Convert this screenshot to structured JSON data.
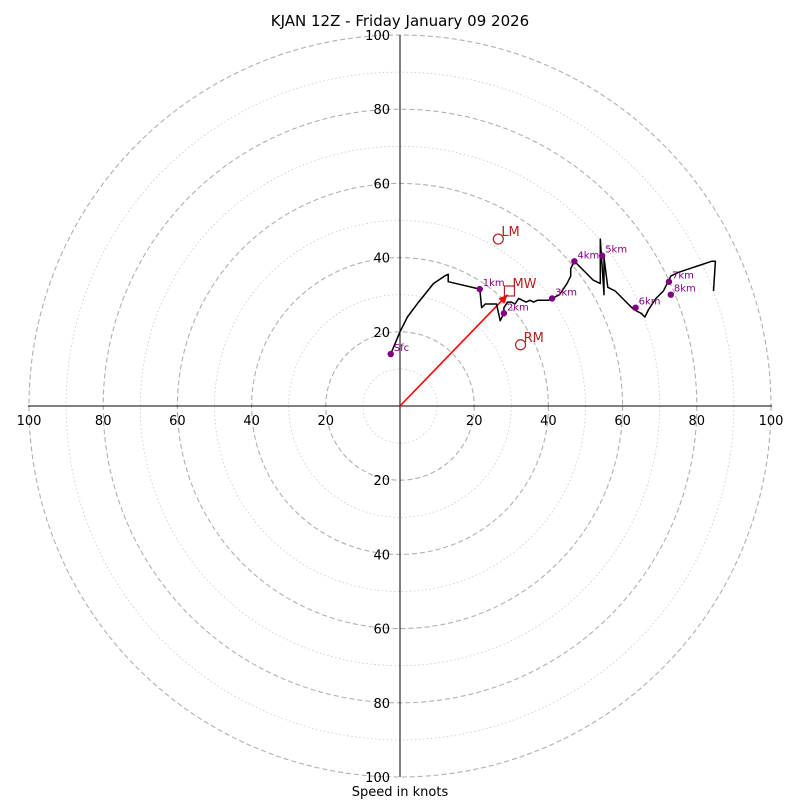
{
  "chart_data": {
    "type": "line",
    "title": "KJAN 12Z - Friday January 09 2026",
    "xlabel": "Speed in knots",
    "ylabel": "",
    "xlim": [
      -100,
      100
    ],
    "ylim": [
      -100,
      100
    ],
    "ring_step_major": 20,
    "ring_step_minor": 10,
    "tick_values": [
      20,
      40,
      60,
      80,
      100
    ],
    "grid": true,
    "colors": {
      "hodograph": "#000000",
      "height_markers": "#800080",
      "motion": "#b22222",
      "shear_vector": "#ff0000",
      "major_grid": "#b0b0b0",
      "minor_grid": "#c8c8c8"
    },
    "hodograph": {
      "u": [
        -2.5,
        0,
        2,
        5,
        9,
        12,
        13,
        13,
        21.5,
        22,
        23,
        26,
        27,
        28,
        28,
        29,
        30,
        31,
        32,
        33,
        34,
        35,
        36,
        37,
        38,
        40,
        41,
        43,
        45,
        46,
        46,
        47,
        48,
        50,
        52,
        54,
        54,
        55,
        55,
        56,
        58,
        60,
        61,
        63,
        65,
        66,
        67,
        69,
        71,
        72,
        72.5,
        73,
        75,
        78,
        81,
        84,
        85,
        84.5
      ],
      "v": [
        14,
        20,
        24,
        28,
        33,
        35,
        35.5,
        33.5,
        31.5,
        26.5,
        27.5,
        27.5,
        23,
        25,
        26.5,
        28,
        28,
        27.5,
        29,
        28.5,
        28,
        28.5,
        28,
        28.5,
        28.5,
        28.5,
        29,
        30,
        33,
        35,
        37,
        39,
        38,
        36,
        34,
        33,
        45,
        30,
        40,
        32,
        31,
        29,
        28,
        26,
        25,
        24,
        26,
        29,
        31,
        33,
        34,
        35,
        36,
        37,
        38,
        39,
        39,
        31
      ]
    },
    "height_markers": [
      {
        "label": "Sfc",
        "u": -2.5,
        "v": 14
      },
      {
        "label": "1km",
        "u": 21.5,
        "v": 31.5
      },
      {
        "label": "2km",
        "u": 28,
        "v": 25
      },
      {
        "label": "3km",
        "u": 41,
        "v": 29
      },
      {
        "label": "4km",
        "u": 47,
        "v": 39
      },
      {
        "label": "5km",
        "u": 54.5,
        "v": 40.5
      },
      {
        "label": "6km",
        "u": 63.5,
        "v": 26.5
      },
      {
        "label": "7km",
        "u": 72.5,
        "v": 33.5
      },
      {
        "label": "8km",
        "u": 73,
        "v": 30
      }
    ],
    "storm_motions": [
      {
        "label": "LM",
        "u": 26.5,
        "v": 45,
        "marker": "circle"
      },
      {
        "label": "MW",
        "u": 29.5,
        "v": 31,
        "marker": "square"
      },
      {
        "label": "RM",
        "u": 32.5,
        "v": 16.5,
        "marker": "circle"
      }
    ],
    "shear_vector": {
      "u": 29,
      "v": 30
    }
  }
}
